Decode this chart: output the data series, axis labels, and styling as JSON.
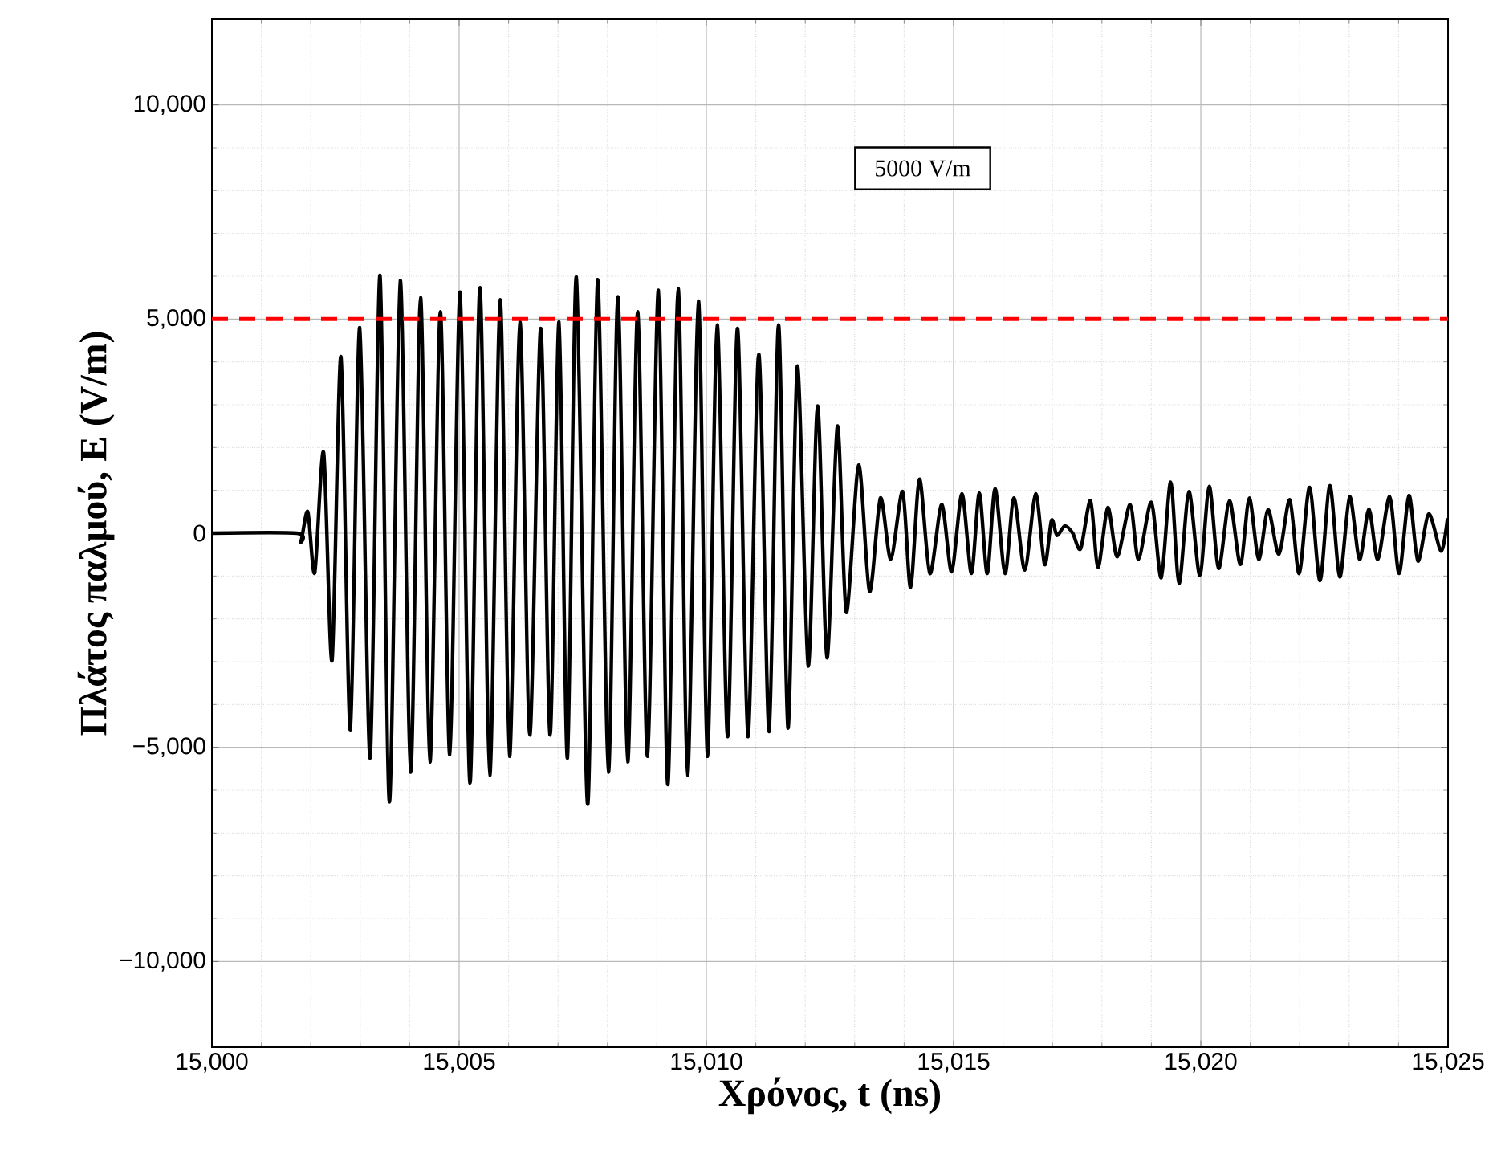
{
  "chart_data": {
    "type": "line",
    "xlabel": "Χρόνος, t (ns)",
    "ylabel": "Πλάτος παλμού, E (V/m)",
    "xlim": [
      15000,
      15025
    ],
    "ylim": [
      -12000,
      12000
    ],
    "xticks": [
      {
        "value": 15000,
        "label": "15,000"
      },
      {
        "value": 15005,
        "label": "15,005"
      },
      {
        "value": 15010,
        "label": "15,010"
      },
      {
        "value": 15015,
        "label": "15,015"
      },
      {
        "value": 15020,
        "label": "15,020"
      },
      {
        "value": 15025,
        "label": "15,025"
      }
    ],
    "yticks": [
      {
        "value": -10000,
        "label": "−10,000"
      },
      {
        "value": -5000,
        "label": "−5,000"
      },
      0,
      {
        "value": 5000,
        "label": "5,000"
      },
      {
        "value": 10000,
        "label": "10,000"
      }
    ],
    "grid": true,
    "ref_lines": [
      {
        "axis": "y",
        "value": 5000,
        "color": "#ff0000",
        "line_style": "dashed"
      }
    ],
    "annotations": [
      "5000 V/m"
    ],
    "series": [
      {
        "color": "#000000",
        "x": [
          15000,
          15001.72,
          15001.8,
          15001.94,
          15002.08,
          15002.26,
          15002.43,
          15002.61,
          15002.8,
          15002.99,
          15003.2,
          15003.4,
          15003.59,
          15003.81,
          15004.02,
          15004.22,
          15004.41,
          15004.62,
          15004.81,
          15005.02,
          15005.22,
          15005.42,
          15005.62,
          15005.83,
          15006.02,
          15006.23,
          15006.43,
          15006.65,
          15006.84,
          15007.02,
          15007.19,
          15007.37,
          15007.6,
          15007.8,
          15008.02,
          15008.21,
          15008.41,
          15008.61,
          15008.81,
          15009.03,
          15009.22,
          15009.43,
          15009.62,
          15009.84,
          15010.02,
          15010.22,
          15010.43,
          15010.63,
          15010.84,
          15011.06,
          15011.27,
          15011.46,
          15011.65,
          15011.84,
          15012.06,
          15012.25,
          15012.44,
          15012.65,
          15012.83,
          15013.08,
          15013.3,
          15013.52,
          15013.73,
          15013.97,
          15014.13,
          15014.31,
          15014.52,
          15014.76,
          15014.96,
          15015.17,
          15015.36,
          15015.52,
          15015.68,
          15015.84,
          15016.04,
          15016.22,
          15016.44,
          15016.66,
          15016.84,
          15016.98,
          15017.09,
          15017.25,
          15017.41,
          15017.57,
          15017.77,
          15017.92,
          15018.12,
          15018.31,
          15018.57,
          15018.74,
          15019.0,
          15019.2,
          15019.39,
          15019.56,
          15019.76,
          15019.98,
          15020.17,
          15020.36,
          15020.58,
          15020.8,
          15020.98,
          15021.17,
          15021.36,
          15021.58,
          15021.8,
          15021.99,
          15022.2,
          15022.41,
          15022.61,
          15022.81,
          15023.01,
          15023.21,
          15023.4,
          15023.58,
          15023.82,
          15024.01,
          15024.21,
          15024.39,
          15024.61,
          15024.86,
          15024.99
        ],
        "values": [
          0,
          0,
          -200,
          500,
          -920,
          1880,
          -2970,
          4120,
          -4590,
          4800,
          -5250,
          6020,
          -6270,
          5900,
          -5580,
          5500,
          -5340,
          5170,
          -5170,
          5630,
          -5830,
          5730,
          -5650,
          5450,
          -5210,
          4930,
          -4710,
          4780,
          -4710,
          4930,
          -5250,
          5980,
          -6330,
          5920,
          -5580,
          5520,
          -5340,
          5170,
          -5210,
          5670,
          -5870,
          5710,
          -5650,
          5420,
          -5210,
          4860,
          -4750,
          4780,
          -4750,
          4180,
          -4630,
          4860,
          -4550,
          3900,
          -3100,
          2970,
          -2910,
          2500,
          -1850,
          1590,
          -1360,
          820,
          -610,
          970,
          -1270,
          1260,
          -940,
          670,
          -900,
          920,
          -940,
          940,
          -940,
          1040,
          -940,
          820,
          -860,
          920,
          -730,
          300,
          -50,
          170,
          0,
          -360,
          760,
          -800,
          600,
          -550,
          670,
          -610,
          720,
          -1040,
          1190,
          -1170,
          970,
          -980,
          1090,
          -820,
          760,
          -730,
          820,
          -610,
          550,
          -490,
          780,
          -940,
          1070,
          -1110,
          1110,
          -1020,
          850,
          -610,
          570,
          -610,
          850,
          -940,
          880,
          -650,
          450,
          -420,
          350
        ]
      }
    ]
  }
}
